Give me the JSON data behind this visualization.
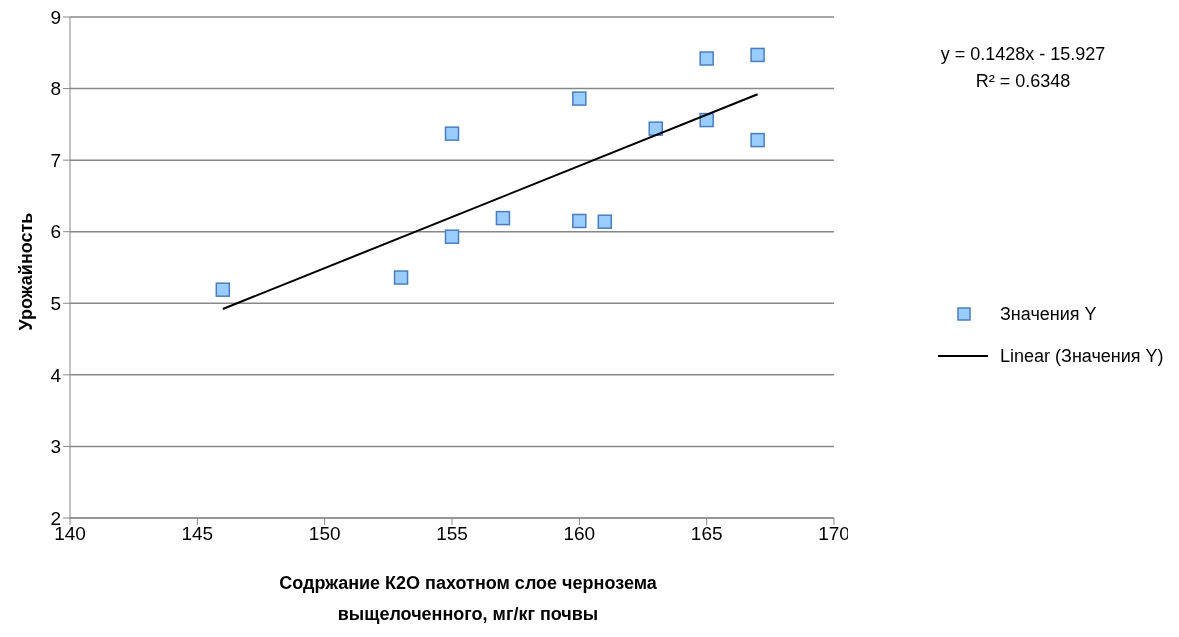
{
  "chart_data": {
    "type": "scatter",
    "xlabel": "Содржание К2О пахотном слое чернозема выщелоченного, мг/кг почвы",
    "ylabel": "Урожайность",
    "xlim": [
      140,
      170
    ],
    "xticks": [
      140,
      145,
      150,
      155,
      160,
      165,
      170
    ],
    "ylim": [
      2,
      9
    ],
    "yticks": [
      2,
      3,
      4,
      5,
      6,
      7,
      8,
      9
    ],
    "grid": "y",
    "legend": "right",
    "series": [
      {
        "name": "Значения Y",
        "marker": "square",
        "color": "#99ccff",
        "x": [
          146,
          153,
          155,
          155,
          157,
          160,
          160,
          161,
          163,
          165,
          165,
          167,
          167
        ],
        "values": [
          5.19,
          5.36,
          7.37,
          5.93,
          6.19,
          7.86,
          6.15,
          6.14,
          7.44,
          8.42,
          7.56,
          8.47,
          7.28
        ]
      },
      {
        "name": "Linear (Значения Y)",
        "type": "line",
        "marker": "none",
        "color": "#000000",
        "line_style": "solid",
        "x": [
          146,
          167
        ],
        "values": [
          4.92,
          7.92
        ]
      }
    ],
    "annotations": [
      "y = 0.1428x - 15.927",
      "R² = 0.6348"
    ]
  }
}
